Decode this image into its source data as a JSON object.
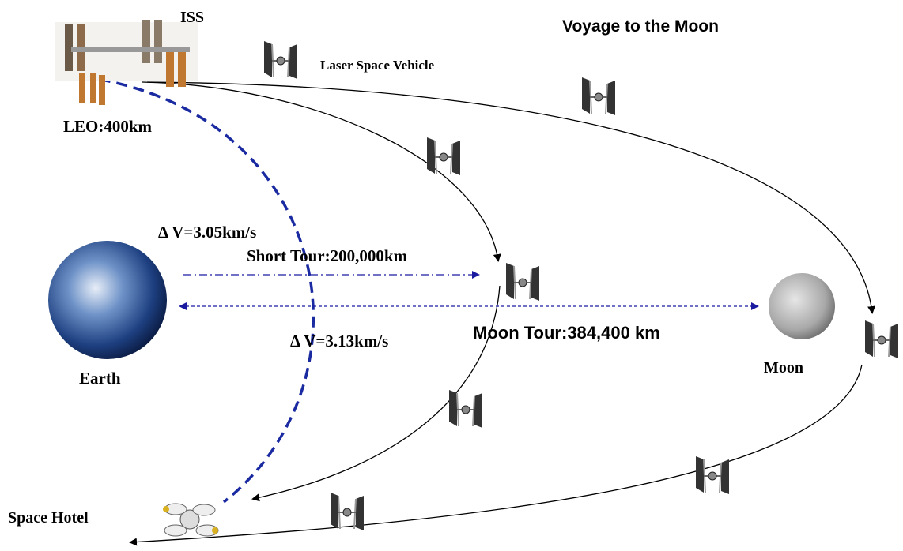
{
  "title": "Voyage to the Moon",
  "labels": {
    "iss": "ISS",
    "vehicle": "Laser Space Vehicle",
    "leo": "LEO:400km",
    "delta_v1": "Δ V=3.05km/s",
    "short_tour": "Short Tour:200,000km",
    "delta_v2": "Δ V=3.13km/s",
    "moon_tour": "Moon Tour:384,400 km",
    "earth": "Earth",
    "moon": "Moon",
    "hotel": "Space Hotel"
  }
}
